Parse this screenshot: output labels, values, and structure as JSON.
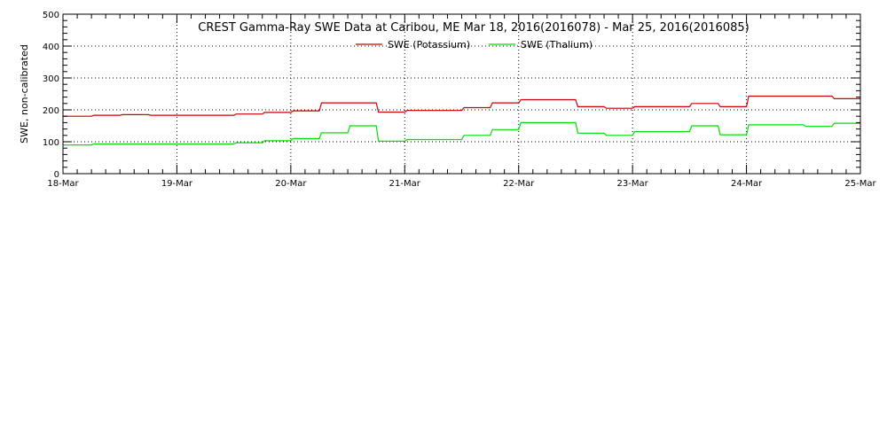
{
  "chart_data": {
    "type": "line",
    "title": "CREST Gamma-Ray SWE Data at Caribou, ME   Mar 18, 2016(2016078) - Mar 25, 2016(2016085)",
    "xlabel": "",
    "ylabel": "SWE, non-calibrated",
    "ylim": [
      0,
      500
    ],
    "yticks": [
      0,
      100,
      200,
      300,
      400,
      500
    ],
    "xlim": [
      "2016-03-18",
      "2016-03-25"
    ],
    "xticks": [
      "18-Mar",
      "19-Mar",
      "20-Mar",
      "21-Mar",
      "22-Mar",
      "23-Mar",
      "24-Mar",
      "25-Mar"
    ],
    "x_unit": "days",
    "grid": true,
    "legend": "top-center",
    "series": [
      {
        "name": "SWE (Potassium)",
        "color": "#cc0000",
        "x": [
          0.0,
          0.25,
          0.27,
          0.5,
          0.52,
          0.75,
          0.77,
          1.0,
          1.5,
          1.52,
          1.75,
          1.77,
          2.0,
          2.02,
          2.25,
          2.27,
          2.5,
          2.75,
          2.77,
          3.0,
          3.02,
          3.25,
          3.5,
          3.52,
          3.75,
          3.77,
          4.0,
          4.02,
          4.25,
          4.5,
          4.52,
          4.75,
          4.77,
          5.0,
          5.02,
          5.25,
          5.5,
          5.52,
          5.75,
          5.77,
          6.0,
          6.02,
          6.25,
          6.5,
          6.75,
          6.77,
          7.0
        ],
        "y": [
          180,
          180,
          183,
          183,
          185,
          185,
          183,
          183,
          183,
          187,
          187,
          192,
          192,
          197,
          197,
          222,
          222,
          222,
          193,
          193,
          198,
          198,
          198,
          207,
          207,
          222,
          222,
          232,
          232,
          232,
          210,
          210,
          205,
          205,
          210,
          210,
          210,
          220,
          220,
          210,
          210,
          243,
          243,
          243,
          243,
          235,
          235
        ]
      },
      {
        "name": "SWE (Thalium)",
        "color": "#00dd00",
        "x": [
          0.0,
          0.25,
          0.27,
          0.5,
          0.75,
          1.0,
          1.5,
          1.52,
          1.75,
          1.77,
          2.0,
          2.02,
          2.25,
          2.27,
          2.5,
          2.52,
          2.75,
          2.77,
          3.0,
          3.02,
          3.25,
          3.5,
          3.52,
          3.75,
          3.77,
          4.0,
          4.02,
          4.25,
          4.5,
          4.52,
          4.75,
          4.77,
          5.0,
          5.02,
          5.25,
          5.5,
          5.52,
          5.75,
          5.77,
          6.0,
          6.02,
          6.25,
          6.5,
          6.52,
          6.75,
          6.77,
          7.0
        ],
        "y": [
          90,
          90,
          93,
          93,
          93,
          93,
          93,
          97,
          97,
          103,
          103,
          110,
          110,
          128,
          128,
          150,
          150,
          102,
          102,
          107,
          107,
          107,
          120,
          120,
          138,
          138,
          160,
          160,
          160,
          127,
          127,
          120,
          120,
          132,
          132,
          132,
          150,
          150,
          122,
          122,
          153,
          153,
          153,
          148,
          148,
          158,
          158
        ]
      }
    ]
  }
}
